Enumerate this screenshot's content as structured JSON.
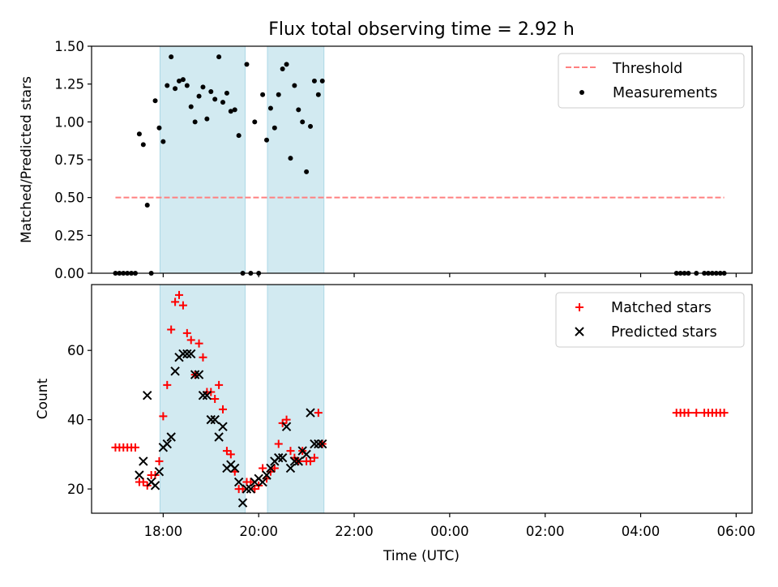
{
  "title": "Flux total observing time = 2.92 h",
  "xlabel": "Time (UTC)",
  "x_ticks": [
    "18:00",
    "20:00",
    "22:00",
    "00:00",
    "02:00",
    "04:00",
    "06:00"
  ],
  "colors": {
    "shade": "#add8e6",
    "threshold": "#ff7f7f",
    "measurement": "#000000",
    "matched": "#ff0000",
    "predicted": "#000000"
  },
  "chart_data": [
    {
      "type": "scatter",
      "ylabel": "Matched/Predicted stars",
      "xlim": [
        "2023-01-01T16:30",
        "2023-01-02T06:20"
      ],
      "ylim": [
        0,
        1.5
      ],
      "y_ticks": [
        "0.00",
        "0.25",
        "0.50",
        "0.75",
        "1.00",
        "1.25",
        "1.50"
      ],
      "legend": {
        "position": "top-right",
        "threshold_label": "Threshold",
        "measurement_label": "Measurements"
      },
      "shaded_spans": [
        [
          "2023-01-01T17:56",
          "2023-01-01T19:43"
        ],
        [
          "2023-01-01T20:11",
          "2023-01-01T21:22"
        ]
      ],
      "threshold": {
        "value": 0.5,
        "x_range": [
          "2023-01-01T17:00",
          "2023-01-02T05:45"
        ]
      },
      "series": [
        {
          "name": "Measurements",
          "x": [
            "2023-01-01T17:00",
            "2023-01-01T17:05",
            "2023-01-01T17:10",
            "2023-01-01T17:15",
            "2023-01-01T17:20",
            "2023-01-01T17:25",
            "2023-01-01T17:30",
            "2023-01-01T17:35",
            "2023-01-01T17:40",
            "2023-01-01T17:45",
            "2023-01-01T17:50",
            "2023-01-01T17:55",
            "2023-01-01T18:00",
            "2023-01-01T18:05",
            "2023-01-01T18:10",
            "2023-01-01T18:15",
            "2023-01-01T18:20",
            "2023-01-01T18:25",
            "2023-01-01T18:30",
            "2023-01-01T18:35",
            "2023-01-01T18:40",
            "2023-01-01T18:45",
            "2023-01-01T18:50",
            "2023-01-01T18:55",
            "2023-01-01T19:00",
            "2023-01-01T19:05",
            "2023-01-01T19:10",
            "2023-01-01T19:15",
            "2023-01-01T19:20",
            "2023-01-01T19:25",
            "2023-01-01T19:30",
            "2023-01-01T19:35",
            "2023-01-01T19:40",
            "2023-01-01T19:45",
            "2023-01-01T19:50",
            "2023-01-01T19:55",
            "2023-01-01T20:00",
            "2023-01-01T20:05",
            "2023-01-01T20:10",
            "2023-01-01T20:15",
            "2023-01-01T20:20",
            "2023-01-01T20:25",
            "2023-01-01T20:30",
            "2023-01-01T20:35",
            "2023-01-01T20:40",
            "2023-01-01T20:45",
            "2023-01-01T20:50",
            "2023-01-01T20:55",
            "2023-01-01T21:00",
            "2023-01-01T21:05",
            "2023-01-01T21:10",
            "2023-01-01T21:15",
            "2023-01-01T21:20",
            "2023-01-02T04:45",
            "2023-01-02T04:50",
            "2023-01-02T04:55",
            "2023-01-02T05:00",
            "2023-01-02T05:10",
            "2023-01-02T05:20",
            "2023-01-02T05:25",
            "2023-01-02T05:30",
            "2023-01-02T05:35",
            "2023-01-02T05:40",
            "2023-01-02T05:45"
          ],
          "y": [
            0,
            0,
            0,
            0,
            0,
            0,
            0.92,
            0.85,
            0.45,
            0,
            1.14,
            0.96,
            0.87,
            1.24,
            1.43,
            1.22,
            1.27,
            1.28,
            1.24,
            1.1,
            1.0,
            1.17,
            1.23,
            1.02,
            1.2,
            1.15,
            1.43,
            1.13,
            1.19,
            1.07,
            1.08,
            0.91,
            0,
            1.38,
            0,
            1.0,
            0,
            1.18,
            0.88,
            1.09,
            0.96,
            1.18,
            1.35,
            1.38,
            0.76,
            1.24,
            1.08,
            1.0,
            0.67,
            0.97,
            1.27,
            1.18,
            1.27,
            0,
            0,
            0,
            0,
            0,
            0,
            0,
            0,
            0,
            0,
            0
          ]
        }
      ]
    },
    {
      "type": "scatter",
      "ylabel": "Count",
      "xlim": [
        "2023-01-01T16:30",
        "2023-01-02T06:20"
      ],
      "ylim": [
        13,
        79
      ],
      "y_ticks": [
        "20",
        "40",
        "60"
      ],
      "legend": {
        "position": "top-right"
      },
      "shaded_spans": [
        [
          "2023-01-01T17:56",
          "2023-01-01T19:43"
        ],
        [
          "2023-01-01T20:11",
          "2023-01-01T21:22"
        ]
      ],
      "series": [
        {
          "name": "Matched stars",
          "x": [
            "2023-01-01T17:00",
            "2023-01-01T17:05",
            "2023-01-01T17:10",
            "2023-01-01T17:15",
            "2023-01-01T17:20",
            "2023-01-01T17:25",
            "2023-01-01T17:30",
            "2023-01-01T17:35",
            "2023-01-01T17:40",
            "2023-01-01T17:45",
            "2023-01-01T17:50",
            "2023-01-01T17:55",
            "2023-01-01T18:00",
            "2023-01-01T18:05",
            "2023-01-01T18:10",
            "2023-01-01T18:15",
            "2023-01-01T18:20",
            "2023-01-01T18:25",
            "2023-01-01T18:30",
            "2023-01-01T18:35",
            "2023-01-01T18:40",
            "2023-01-01T18:45",
            "2023-01-01T18:50",
            "2023-01-01T18:55",
            "2023-01-01T19:00",
            "2023-01-01T19:05",
            "2023-01-01T19:10",
            "2023-01-01T19:15",
            "2023-01-01T19:20",
            "2023-01-01T19:25",
            "2023-01-01T19:30",
            "2023-01-01T19:35",
            "2023-01-01T19:40",
            "2023-01-01T19:45",
            "2023-01-01T19:50",
            "2023-01-01T19:55",
            "2023-01-01T20:00",
            "2023-01-01T20:05",
            "2023-01-01T20:10",
            "2023-01-01T20:15",
            "2023-01-01T20:20",
            "2023-01-01T20:25",
            "2023-01-01T20:30",
            "2023-01-01T20:35",
            "2023-01-01T20:40",
            "2023-01-01T20:45",
            "2023-01-01T20:50",
            "2023-01-01T20:55",
            "2023-01-01T21:00",
            "2023-01-01T21:05",
            "2023-01-01T21:10",
            "2023-01-01T21:15",
            "2023-01-01T21:20",
            "2023-01-02T04:45",
            "2023-01-02T04:50",
            "2023-01-02T04:55",
            "2023-01-02T05:00",
            "2023-01-02T05:10",
            "2023-01-02T05:20",
            "2023-01-02T05:25",
            "2023-01-02T05:30",
            "2023-01-02T05:35",
            "2023-01-02T05:40",
            "2023-01-02T05:45"
          ],
          "y": [
            32,
            32,
            32,
            32,
            32,
            32,
            22,
            22,
            21,
            24,
            24,
            28,
            41,
            50,
            66,
            74,
            76,
            73,
            65,
            63,
            53,
            62,
            58,
            48,
            48,
            46,
            50,
            43,
            31,
            30,
            25,
            20,
            20,
            22,
            22,
            20,
            21,
            26,
            23,
            25,
            26,
            33,
            39,
            40,
            31,
            29,
            28,
            31,
            28,
            28,
            29,
            42,
            33,
            42,
            42,
            42,
            42,
            42,
            42,
            42,
            42,
            42,
            42,
            42
          ]
        },
        {
          "name": "Predicted stars",
          "x": [
            "2023-01-01T17:30",
            "2023-01-01T17:35",
            "2023-01-01T17:40",
            "2023-01-01T17:45",
            "2023-01-01T17:50",
            "2023-01-01T17:55",
            "2023-01-01T18:00",
            "2023-01-01T18:05",
            "2023-01-01T18:10",
            "2023-01-01T18:15",
            "2023-01-01T18:20",
            "2023-01-01T18:25",
            "2023-01-01T18:30",
            "2023-01-01T18:35",
            "2023-01-01T18:40",
            "2023-01-01T18:45",
            "2023-01-01T18:50",
            "2023-01-01T18:55",
            "2023-01-01T19:00",
            "2023-01-01T19:05",
            "2023-01-01T19:10",
            "2023-01-01T19:15",
            "2023-01-01T19:20",
            "2023-01-01T19:25",
            "2023-01-01T19:30",
            "2023-01-01T19:35",
            "2023-01-01T19:40",
            "2023-01-01T19:45",
            "2023-01-01T19:50",
            "2023-01-01T19:55",
            "2023-01-01T20:00",
            "2023-01-01T20:05",
            "2023-01-01T20:10",
            "2023-01-01T20:15",
            "2023-01-01T20:20",
            "2023-01-01T20:25",
            "2023-01-01T20:30",
            "2023-01-01T20:35",
            "2023-01-01T20:40",
            "2023-01-01T20:45",
            "2023-01-01T20:50",
            "2023-01-01T20:55",
            "2023-01-01T21:00",
            "2023-01-01T21:05",
            "2023-01-01T21:10",
            "2023-01-01T21:15",
            "2023-01-01T21:20"
          ],
          "y": [
            24,
            28,
            47,
            22,
            21,
            25,
            32,
            33,
            35,
            54,
            58,
            59,
            59,
            59,
            53,
            53,
            47,
            47,
            40,
            40,
            35,
            38,
            26,
            27,
            26,
            22,
            16,
            20,
            20,
            22,
            23,
            22,
            24,
            26,
            28,
            29,
            29,
            38,
            26,
            28,
            28,
            31,
            30,
            42,
            33,
            33,
            33
          ]
        }
      ]
    }
  ]
}
